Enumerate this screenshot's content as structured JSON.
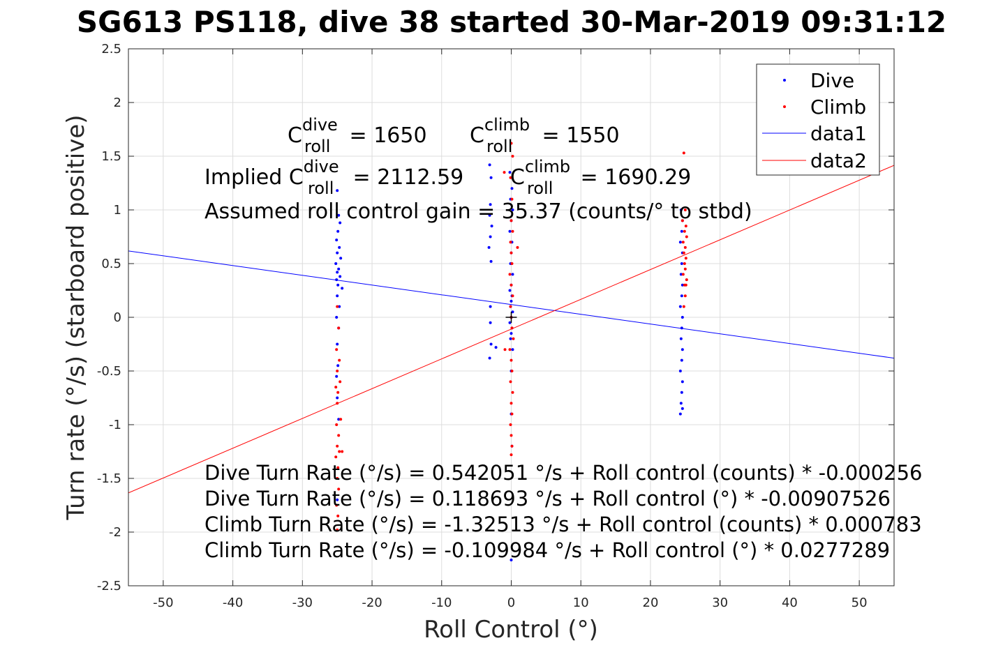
{
  "chart_data": {
    "type": "scatter",
    "title": "SG613 PS118, dive 38 started 30-Mar-2019 09:31:12",
    "xlabel": "Roll Control (°)",
    "ylabel": "Turn rate (°/s) (starboard positive)",
    "xlim": [
      -55,
      55
    ],
    "ylim": [
      -2.5,
      2.5
    ],
    "xticks": [
      -50,
      -40,
      -30,
      -20,
      -10,
      0,
      10,
      20,
      30,
      40,
      50
    ],
    "xtick_labels": [
      "-50",
      "-40",
      "-30",
      "-20",
      "-10",
      "0",
      "10",
      "20",
      "30",
      "40",
      "50"
    ],
    "yticks": [
      -2.5,
      -2,
      -1.5,
      -1,
      -0.5,
      0,
      0.5,
      1,
      1.5,
      2,
      2.5
    ],
    "ytick_labels": [
      "-2.5",
      "-2",
      "-1.5",
      "-1",
      "-0.5",
      "0",
      "0.5",
      "1",
      "1.5",
      "2",
      "2.5"
    ],
    "grid": true,
    "legend_position": "top-right",
    "legend": [
      {
        "label": "Dive",
        "marker": "point",
        "color": "#0000ff"
      },
      {
        "label": "Climb",
        "marker": "point",
        "color": "#ff0000"
      },
      {
        "label": "data1",
        "marker": "line",
        "color": "#0000ff"
      },
      {
        "label": "data2",
        "marker": "line",
        "color": "#ff0000"
      }
    ],
    "series": [
      {
        "name": "Dive",
        "kind": "points",
        "color": "#0000ff",
        "points": [
          [
            -25,
            1.18
          ],
          [
            -24.8,
            0.95
          ],
          [
            -24.6,
            0.88
          ],
          [
            -24.9,
            0.8
          ],
          [
            -25.1,
            0.72
          ],
          [
            -24.7,
            0.65
          ],
          [
            -25,
            0.6
          ],
          [
            -24.5,
            0.55
          ],
          [
            -25.2,
            0.5
          ],
          [
            -24.8,
            0.45
          ],
          [
            -25,
            0.42
          ],
          [
            -24.6,
            0.38
          ],
          [
            -25.1,
            0.35
          ],
          [
            -24.9,
            0.3
          ],
          [
            -24.3,
            0.27
          ],
          [
            -25,
            0.2
          ],
          [
            -24.7,
            0.1
          ],
          [
            -25.1,
            0.0
          ],
          [
            -24.8,
            -0.1
          ],
          [
            -25,
            -0.25
          ],
          [
            -24.9,
            -0.45
          ],
          [
            -25.1,
            -0.55
          ],
          [
            -25,
            -0.75
          ],
          [
            -24.8,
            -0.95
          ],
          [
            -25,
            -1.7
          ],
          [
            -3.1,
            1.42
          ],
          [
            -2.9,
            1.3
          ],
          [
            -3,
            1.05
          ],
          [
            -3.1,
            0.95
          ],
          [
            -2.8,
            0.85
          ],
          [
            -3,
            0.75
          ],
          [
            -3.2,
            0.65
          ],
          [
            -2.9,
            0.52
          ],
          [
            -3,
            0.1
          ],
          [
            -3,
            -0.05
          ],
          [
            -2.9,
            -0.25
          ],
          [
            -3.1,
            -0.38
          ],
          [
            -2.2,
            -0.28
          ],
          [
            -0.2,
            1.35
          ],
          [
            0.1,
            1.2
          ],
          [
            -0.1,
            1.1
          ],
          [
            0.2,
            1.0
          ],
          [
            0,
            0.9
          ],
          [
            -0.2,
            0.8
          ],
          [
            0.1,
            0.7
          ],
          [
            0,
            0.6
          ],
          [
            -0.1,
            0.5
          ],
          [
            0.2,
            0.4
          ],
          [
            0,
            0.3
          ],
          [
            -0.2,
            0.25
          ],
          [
            0.1,
            0.2
          ],
          [
            0,
            0.15
          ],
          [
            -0.1,
            0.1
          ],
          [
            0.2,
            0.05
          ],
          [
            0,
            0.0
          ],
          [
            -0.2,
            -0.05
          ],
          [
            0.1,
            -0.1
          ],
          [
            0,
            -0.15
          ],
          [
            -0.1,
            -0.2
          ],
          [
            0.2,
            -0.3
          ],
          [
            0,
            -0.5
          ],
          [
            0,
            -0.9
          ],
          [
            0.1,
            -1.2
          ],
          [
            0,
            -2.26
          ],
          [
            24.4,
            1.0
          ],
          [
            24.6,
            0.9
          ],
          [
            24.5,
            0.8
          ],
          [
            24.3,
            0.7
          ],
          [
            24.6,
            0.6
          ],
          [
            24.5,
            0.5
          ],
          [
            24.4,
            0.4
          ],
          [
            24.6,
            0.3
          ],
          [
            24.5,
            0.2
          ],
          [
            24.3,
            0.1
          ],
          [
            24.6,
            0.0
          ],
          [
            24.5,
            -0.1
          ],
          [
            24.4,
            -0.2
          ],
          [
            24.6,
            -0.3
          ],
          [
            24.5,
            -0.4
          ],
          [
            24.3,
            -0.5
          ],
          [
            24.6,
            -0.6
          ],
          [
            24.5,
            -0.7
          ],
          [
            24.4,
            -0.8
          ],
          [
            24.6,
            -0.85
          ],
          [
            24.3,
            -0.9
          ]
        ]
      },
      {
        "name": "Climb",
        "kind": "points",
        "color": "#ff0000",
        "points": [
          [
            -25,
            0.1
          ],
          [
            -24.8,
            -0.1
          ],
          [
            -25.1,
            -0.3
          ],
          [
            -24.7,
            -0.4
          ],
          [
            -25,
            -0.5
          ],
          [
            -24.6,
            -0.6
          ],
          [
            -25.2,
            -0.65
          ],
          [
            -24.9,
            -0.7
          ],
          [
            -25,
            -0.8
          ],
          [
            -24.5,
            -0.95
          ],
          [
            -25.1,
            -1.0
          ],
          [
            -24.8,
            -1.1
          ],
          [
            -25,
            -1.2
          ],
          [
            -24.7,
            -1.25
          ],
          [
            -25.2,
            -1.3
          ],
          [
            -24.3,
            -1.25
          ],
          [
            -24.9,
            -1.4
          ],
          [
            -25,
            -1.5
          ],
          [
            -24.8,
            -1.6
          ],
          [
            -25.1,
            -1.75
          ],
          [
            -24.9,
            -1.85
          ],
          [
            -25,
            -1.98
          ],
          [
            0,
            1.62
          ],
          [
            0.2,
            1.5
          ],
          [
            -0.1,
            1.3
          ],
          [
            -1,
            1.35
          ],
          [
            0.1,
            1.1
          ],
          [
            0,
            0.9
          ],
          [
            0.2,
            0.8
          ],
          [
            -0.1,
            0.7
          ],
          [
            0.9,
            0.65
          ],
          [
            0,
            0.6
          ],
          [
            0.1,
            0.5
          ],
          [
            -0.2,
            0.4
          ],
          [
            0,
            0.3
          ],
          [
            0.2,
            0.2
          ],
          [
            -0.1,
            0.1
          ],
          [
            0,
            0.0
          ],
          [
            0.1,
            -0.1
          ],
          [
            0.3,
            -0.2
          ],
          [
            -0.2,
            -0.3
          ],
          [
            0,
            -0.4
          ],
          [
            0.1,
            -0.5
          ],
          [
            -0.1,
            -0.6
          ],
          [
            0.2,
            -0.7
          ],
          [
            0,
            -0.8
          ],
          [
            0.1,
            -0.9
          ],
          [
            -0.1,
            -1.0
          ],
          [
            0,
            -1.1
          ],
          [
            0.1,
            -1.2
          ],
          [
            0,
            -1.28
          ],
          [
            -0.9,
            -0.3
          ],
          [
            24.8,
            1.53
          ],
          [
            25,
            1.0
          ],
          [
            24.6,
            0.9
          ],
          [
            25.1,
            0.85
          ],
          [
            24.9,
            0.8
          ],
          [
            25.2,
            0.75
          ],
          [
            24.7,
            0.7
          ],
          [
            25,
            0.65
          ],
          [
            24.8,
            0.6
          ],
          [
            25.1,
            0.55
          ],
          [
            24.9,
            0.5
          ],
          [
            25,
            0.45
          ],
          [
            24.7,
            0.4
          ],
          [
            25.2,
            0.35
          ],
          [
            24.9,
            0.3
          ],
          [
            25,
            0.2
          ],
          [
            24.8,
            0.1
          ],
          [
            25.1,
            0.3
          ]
        ]
      },
      {
        "name": "data1",
        "kind": "line",
        "color": "#0000ff",
        "intercept": 0.118693,
        "slope": -0.00907526
      },
      {
        "name": "data2",
        "kind": "line",
        "color": "#ff0000",
        "intercept": -0.109984,
        "slope": 0.0277289
      }
    ],
    "marker_point": {
      "x": 0,
      "y": 0,
      "symbol": "+",
      "color": "#000000"
    },
    "annotations": {
      "c_roll_dive": {
        "base": "C",
        "sup": "dive",
        "sub": "roll",
        "rest": " = 1650"
      },
      "c_roll_climb": {
        "base": "C",
        "sup": "climb",
        "sub": "roll",
        "rest": " = 1550"
      },
      "implied_dive": {
        "prefix": "Implied C",
        "sup": "dive",
        "sub": "roll",
        "rest": " = 2112.59"
      },
      "implied_climb": {
        "base": "C",
        "sup": "climb",
        "sub": "roll",
        "rest": " = 1690.29"
      },
      "gain": "Assumed roll control gain = 35.37 (counts/° to stbd)",
      "equations": [
        "Dive Turn Rate (°/s) = 0.542051 °/s + Roll control (counts) * -0.000256",
        "Dive Turn Rate (°/s) = 0.118693 °/s + Roll control (°) * -0.00907526",
        "Climb Turn Rate (°/s) = -1.32513 °/s + Roll control (counts) * 0.000783",
        "Climb Turn Rate (°/s) = -0.109984 °/s + Roll control (°) * 0.0277289"
      ]
    }
  }
}
